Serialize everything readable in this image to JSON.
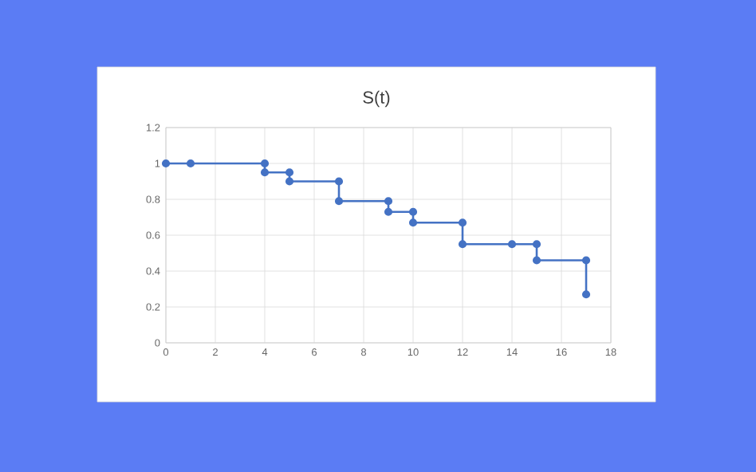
{
  "chart_data": {
    "type": "line",
    "title": "S(t)",
    "x": [
      0,
      1,
      4,
      4,
      5,
      5,
      7,
      7,
      9,
      9,
      10,
      10,
      12,
      12,
      14,
      15,
      15,
      17,
      17
    ],
    "series": [
      {
        "color": "#4472c4",
        "values": [
          1,
          1,
          1,
          0.95,
          0.95,
          0.9,
          0.9,
          0.79,
          0.79,
          0.73,
          0.73,
          0.67,
          0.67,
          0.55,
          0.55,
          0.55,
          0.46,
          0.46,
          0.27
        ]
      }
    ],
    "xlim": [
      0,
      18
    ],
    "xticks": [
      0,
      2,
      4,
      6,
      8,
      10,
      12,
      14,
      16,
      18
    ],
    "ylim": [
      0,
      1.2
    ],
    "yticks": [
      0,
      0.2,
      0.4,
      0.6,
      0.8,
      1,
      1.2
    ],
    "grid": true,
    "marker": "circle",
    "line_style": "solid"
  }
}
